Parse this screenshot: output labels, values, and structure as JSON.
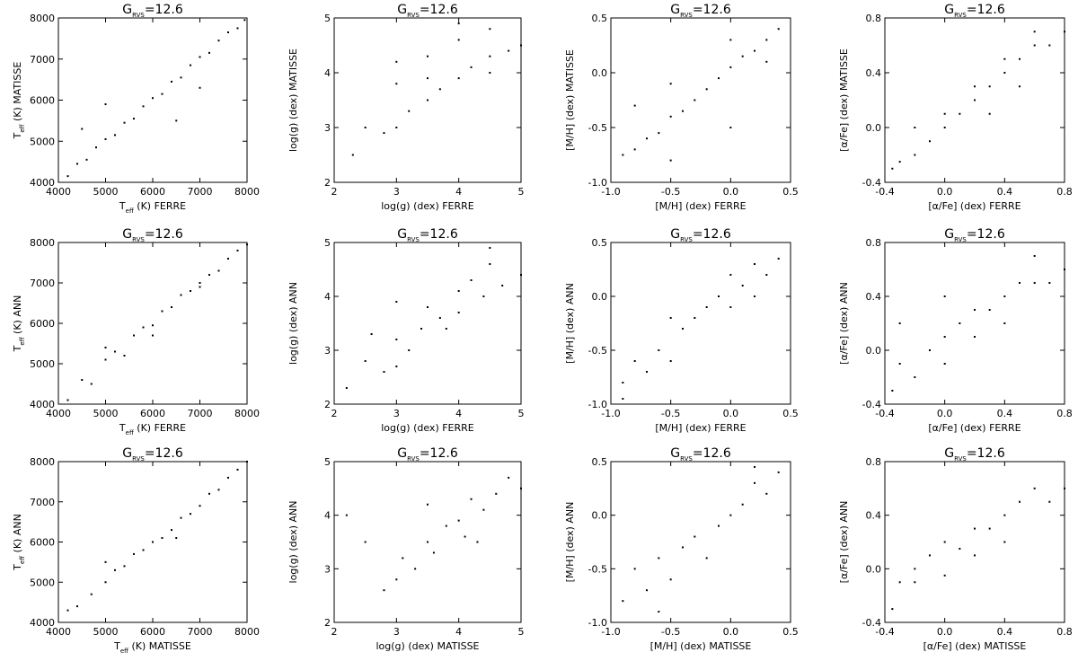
{
  "chart_data": [
    {
      "type": "scatter",
      "color": "#000000",
      "title": [
        {
          "text": "G"
        },
        {
          "text": "RVS",
          "subscript": true
        },
        {
          "text": "=12.6"
        }
      ],
      "xlabel": [
        {
          "text": "T"
        },
        {
          "text": "eff",
          "subscript": true
        },
        {
          "text": " (K) FERRE"
        }
      ],
      "ylabel": [
        {
          "text": "T"
        },
        {
          "text": "eff",
          "subscript": true
        },
        {
          "text": " (K) MATISSE"
        }
      ],
      "xlim": [
        4000,
        8000
      ],
      "ylim": [
        4000,
        8000
      ],
      "xticks": [
        4000,
        5000,
        6000,
        7000,
        8000
      ],
      "yticks": [
        4000,
        5000,
        6000,
        7000,
        8000
      ],
      "x": [
        4200,
        4400,
        4600,
        4800,
        5000,
        5200,
        5400,
        5600,
        5800,
        6000,
        6200,
        6400,
        6600,
        6800,
        7000,
        7200,
        7400,
        7600,
        7800,
        7950,
        5000,
        6500,
        7000,
        4500
      ],
      "y": [
        4150,
        4450,
        4550,
        4850,
        5050,
        5150,
        5450,
        5550,
        5850,
        6050,
        6150,
        6450,
        6550,
        6850,
        7050,
        7150,
        7450,
        7650,
        7750,
        7950,
        5900,
        5500,
        6300,
        5300
      ]
    },
    {
      "type": "scatter",
      "color": "#000000",
      "title": [
        {
          "text": "G"
        },
        {
          "text": "RVS",
          "subscript": true
        },
        {
          "text": "=12.6"
        }
      ],
      "xlabel": [
        {
          "text": "log(g) (dex) FERRE"
        }
      ],
      "ylabel": [
        {
          "text": "log(g) (dex) MATISSE"
        }
      ],
      "xlim": [
        2,
        5
      ],
      "ylim": [
        2,
        5
      ],
      "xticks": [
        2,
        3,
        4,
        5
      ],
      "yticks": [
        2,
        3,
        4,
        5
      ],
      "x": [
        2.5,
        2.8,
        3.0,
        3.0,
        3.2,
        3.5,
        3.5,
        3.7,
        4.0,
        4.0,
        4.2,
        4.5,
        4.5,
        4.8,
        5.0,
        3.0,
        4.0,
        2.3,
        3.5,
        4.5
      ],
      "y": [
        3.0,
        2.9,
        3.0,
        3.8,
        3.3,
        3.5,
        4.3,
        3.7,
        3.9,
        4.6,
        4.1,
        4.3,
        4.8,
        4.4,
        4.5,
        4.2,
        4.9,
        2.5,
        3.9,
        4.0
      ]
    },
    {
      "type": "scatter",
      "color": "#000000",
      "title": [
        {
          "text": "G"
        },
        {
          "text": "RVS",
          "subscript": true
        },
        {
          "text": "=12.6"
        }
      ],
      "xlabel": [
        {
          "text": "[M/H] (dex) FERRE"
        }
      ],
      "ylabel": [
        {
          "text": "[M/H] (dex) MATISSE"
        }
      ],
      "xlim": [
        -1.0,
        0.5
      ],
      "ylim": [
        -1.0,
        0.5
      ],
      "xticks": [
        {
          "value": -1,
          "label": "-1.0"
        },
        -0.5,
        {
          "value": 0,
          "label": "0.0"
        },
        0.5
      ],
      "yticks": [
        {
          "value": -1,
          "label": "-1.0"
        },
        -0.5,
        {
          "value": 0,
          "label": "0.0"
        },
        0.5
      ],
      "x": [
        -0.9,
        -0.8,
        -0.7,
        -0.6,
        -0.5,
        -0.5,
        -0.4,
        -0.3,
        -0.2,
        -0.1,
        0.0,
        0.0,
        0.1,
        0.2,
        0.3,
        0.4,
        -0.5,
        0.0,
        -0.8,
        0.3
      ],
      "y": [
        -0.75,
        -0.7,
        -0.6,
        -0.55,
        -0.4,
        -0.1,
        -0.35,
        -0.25,
        -0.15,
        -0.05,
        0.05,
        0.3,
        0.15,
        0.2,
        0.3,
        0.4,
        -0.8,
        -0.5,
        -0.3,
        0.1
      ]
    },
    {
      "type": "scatter",
      "color": "#000000",
      "title": [
        {
          "text": "G"
        },
        {
          "text": "RVS",
          "subscript": true
        },
        {
          "text": "=12.6"
        }
      ],
      "xlabel": [
        {
          "text": "[α/Fe] (dex) FERRE"
        }
      ],
      "ylabel": [
        {
          "text": "[α/Fe] (dex) MATISSE"
        }
      ],
      "xlim": [
        -0.4,
        0.8
      ],
      "ylim": [
        -0.4,
        0.8
      ],
      "xticks": [
        -0.4,
        {
          "value": 0,
          "label": "0.0"
        },
        0.4,
        0.8
      ],
      "yticks": [
        -0.4,
        {
          "value": 0,
          "label": "0.0"
        },
        0.4,
        0.8
      ],
      "x": [
        -0.35,
        -0.3,
        -0.2,
        -0.1,
        0.0,
        0.0,
        0.1,
        0.2,
        0.2,
        0.3,
        0.4,
        0.4,
        0.5,
        0.6,
        0.6,
        0.7,
        0.8,
        -0.2,
        0.3,
        0.5
      ],
      "y": [
        -0.3,
        -0.25,
        -0.2,
        -0.1,
        0.0,
        0.1,
        0.1,
        0.2,
        0.3,
        0.3,
        0.4,
        0.5,
        0.5,
        0.6,
        0.7,
        0.6,
        0.7,
        0.0,
        0.1,
        0.3
      ]
    },
    {
      "type": "scatter",
      "color": "#000000",
      "title": [
        {
          "text": "G"
        },
        {
          "text": "RVS",
          "subscript": true
        },
        {
          "text": "=12.6"
        }
      ],
      "xlabel": [
        {
          "text": "T"
        },
        {
          "text": "eff",
          "subscript": true
        },
        {
          "text": " (K) FERRE"
        }
      ],
      "ylabel": [
        {
          "text": "T"
        },
        {
          "text": "eff",
          "subscript": true
        },
        {
          "text": " (K) ANN"
        }
      ],
      "xlim": [
        4000,
        8000
      ],
      "ylim": [
        4000,
        8000
      ],
      "xticks": [
        4000,
        5000,
        6000,
        7000,
        8000
      ],
      "yticks": [
        4000,
        5000,
        6000,
        7000,
        8000
      ],
      "x": [
        4200,
        4500,
        4700,
        5000,
        5200,
        5400,
        5600,
        5800,
        6000,
        6200,
        6400,
        6600,
        6800,
        7000,
        7200,
        7400,
        7600,
        7800,
        8000,
        5000,
        6000,
        7000
      ],
      "y": [
        4100,
        4600,
        4500,
        5100,
        5300,
        5200,
        5700,
        5900,
        5950,
        6300,
        6400,
        6700,
        6800,
        7000,
        7200,
        7300,
        7600,
        7800,
        7950,
        5400,
        5700,
        6900
      ]
    },
    {
      "type": "scatter",
      "color": "#000000",
      "title": [
        {
          "text": "G"
        },
        {
          "text": "RVS",
          "subscript": true
        },
        {
          "text": "=12.6"
        }
      ],
      "xlabel": [
        {
          "text": "log(g) (dex) FERRE"
        }
      ],
      "ylabel": [
        {
          "text": "log(g) (dex) ANN"
        }
      ],
      "xlim": [
        2,
        5
      ],
      "ylim": [
        2,
        5
      ],
      "xticks": [
        2,
        3,
        4,
        5
      ],
      "yticks": [
        2,
        3,
        4,
        5
      ],
      "x": [
        2.2,
        2.5,
        2.8,
        3.0,
        3.0,
        3.2,
        3.4,
        3.5,
        3.7,
        4.0,
        4.0,
        4.2,
        4.4,
        4.5,
        4.7,
        5.0,
        3.0,
        4.5,
        2.6,
        3.8
      ],
      "y": [
        2.3,
        2.8,
        2.6,
        3.2,
        2.7,
        3.0,
        3.4,
        3.8,
        3.6,
        4.1,
        3.7,
        4.3,
        4.0,
        4.6,
        4.2,
        4.4,
        3.9,
        4.9,
        3.3,
        3.4
      ]
    },
    {
      "type": "scatter",
      "color": "#000000",
      "title": [
        {
          "text": "G"
        },
        {
          "text": "RVS",
          "subscript": true
        },
        {
          "text": "=12.6"
        }
      ],
      "xlabel": [
        {
          "text": "[M/H] (dex) FERRE"
        }
      ],
      "ylabel": [
        {
          "text": "[M/H] (dex) ANN"
        }
      ],
      "xlim": [
        -1.0,
        0.5
      ],
      "ylim": [
        -1.0,
        0.5
      ],
      "xticks": [
        {
          "value": -1,
          "label": "-1.0"
        },
        -0.5,
        {
          "value": 0,
          "label": "0.0"
        },
        0.5
      ],
      "yticks": [
        {
          "value": -1,
          "label": "-1.0"
        },
        -0.5,
        {
          "value": 0,
          "label": "0.0"
        },
        0.5
      ],
      "x": [
        -0.9,
        -0.8,
        -0.7,
        -0.6,
        -0.5,
        -0.5,
        -0.4,
        -0.3,
        -0.2,
        -0.1,
        0.0,
        0.0,
        0.1,
        0.2,
        0.3,
        0.4,
        -0.9,
        0.2
      ],
      "y": [
        -0.8,
        -0.6,
        -0.7,
        -0.5,
        -0.6,
        -0.2,
        -0.3,
        -0.2,
        -0.1,
        0.0,
        -0.1,
        0.2,
        0.1,
        0.3,
        0.2,
        0.35,
        -0.95,
        0.0
      ]
    },
    {
      "type": "scatter",
      "color": "#000000",
      "title": [
        {
          "text": "G"
        },
        {
          "text": "RVS",
          "subscript": true
        },
        {
          "text": "=12.6"
        }
      ],
      "xlabel": [
        {
          "text": "[α/Fe] (dex) FERRE"
        }
      ],
      "ylabel": [
        {
          "text": "[α/Fe] (dex) ANN"
        }
      ],
      "xlim": [
        -0.4,
        0.8
      ],
      "ylim": [
        -0.4,
        0.8
      ],
      "xticks": [
        -0.4,
        {
          "value": 0,
          "label": "0.0"
        },
        0.4,
        0.8
      ],
      "yticks": [
        -0.4,
        {
          "value": 0,
          "label": "0.0"
        },
        0.4,
        0.8
      ],
      "x": [
        -0.35,
        -0.3,
        -0.2,
        -0.1,
        0.0,
        0.0,
        0.1,
        0.2,
        0.2,
        0.3,
        0.4,
        0.4,
        0.5,
        0.6,
        0.6,
        0.7,
        0.8,
        -0.3,
        0.0
      ],
      "y": [
        -0.3,
        -0.1,
        -0.2,
        0.0,
        0.1,
        -0.1,
        0.2,
        0.1,
        0.3,
        0.3,
        0.4,
        0.2,
        0.5,
        0.5,
        0.7,
        0.5,
        0.6,
        0.2,
        0.4
      ]
    },
    {
      "type": "scatter",
      "color": "#000000",
      "title": [
        {
          "text": "G"
        },
        {
          "text": "RVS",
          "subscript": true
        },
        {
          "text": "=12.6"
        }
      ],
      "xlabel": [
        {
          "text": "T"
        },
        {
          "text": "eff",
          "subscript": true
        },
        {
          "text": " (K) MATISSE"
        }
      ],
      "ylabel": [
        {
          "text": "T"
        },
        {
          "text": "eff",
          "subscript": true
        },
        {
          "text": " (K) ANN"
        }
      ],
      "xlim": [
        4000,
        8000
      ],
      "ylim": [
        4000,
        8000
      ],
      "xticks": [
        4000,
        5000,
        6000,
        7000,
        8000
      ],
      "yticks": [
        4000,
        5000,
        6000,
        7000,
        8000
      ],
      "x": [
        4200,
        4400,
        4700,
        5000,
        5200,
        5400,
        5600,
        5800,
        6000,
        6200,
        6400,
        6600,
        6800,
        7000,
        7200,
        7400,
        7600,
        7800,
        8000,
        5000,
        6500
      ],
      "y": [
        4300,
        4400,
        4700,
        5000,
        5300,
        5400,
        5700,
        5800,
        6000,
        6100,
        6300,
        6600,
        6700,
        6900,
        7200,
        7300,
        7600,
        7800,
        8000,
        5500,
        6100
      ]
    },
    {
      "type": "scatter",
      "color": "#000000",
      "title": [
        {
          "text": "G"
        },
        {
          "text": "RVS",
          "subscript": true
        },
        {
          "text": "=12.6"
        }
      ],
      "xlabel": [
        {
          "text": "log(g) (dex) MATISSE"
        }
      ],
      "ylabel": [
        {
          "text": "log(g) (dex) ANN"
        }
      ],
      "xlim": [
        2,
        5
      ],
      "ylim": [
        2,
        5
      ],
      "xticks": [
        2,
        3,
        4,
        5
      ],
      "yticks": [
        2,
        3,
        4,
        5
      ],
      "x": [
        2.2,
        2.8,
        3.0,
        3.1,
        3.3,
        3.5,
        3.6,
        3.8,
        4.0,
        4.1,
        4.2,
        4.4,
        4.6,
        4.8,
        5.0,
        3.5,
        4.3,
        2.5
      ],
      "y": [
        4.0,
        2.6,
        2.8,
        3.2,
        3.0,
        3.5,
        3.3,
        3.8,
        3.9,
        3.6,
        4.3,
        4.1,
        4.4,
        4.7,
        4.5,
        4.2,
        3.5,
        3.5
      ]
    },
    {
      "type": "scatter",
      "color": "#000000",
      "title": [
        {
          "text": "G"
        },
        {
          "text": "RVS",
          "subscript": true
        },
        {
          "text": "=12.6"
        }
      ],
      "xlabel": [
        {
          "text": "[M/H] (dex) MATISSE"
        }
      ],
      "ylabel": [
        {
          "text": "[M/H] (dex) ANN"
        }
      ],
      "xlim": [
        -1.0,
        0.5
      ],
      "ylim": [
        -1.0,
        0.5
      ],
      "xticks": [
        {
          "value": -1,
          "label": "-1.0"
        },
        -0.5,
        {
          "value": 0,
          "label": "0.0"
        },
        0.5
      ],
      "yticks": [
        {
          "value": -1,
          "label": "-1.0"
        },
        -0.5,
        {
          "value": 0,
          "label": "0.0"
        },
        0.5
      ],
      "x": [
        -0.9,
        -0.8,
        -0.7,
        -0.6,
        -0.5,
        -0.4,
        -0.3,
        -0.2,
        -0.1,
        0.0,
        0.1,
        0.2,
        0.3,
        0.4,
        -0.6,
        0.2
      ],
      "y": [
        -0.8,
        -0.5,
        -0.7,
        -0.4,
        -0.6,
        -0.3,
        -0.2,
        -0.4,
        -0.1,
        0.0,
        0.1,
        0.3,
        0.2,
        0.4,
        -0.9,
        0.45
      ]
    },
    {
      "type": "scatter",
      "color": "#000000",
      "title": [
        {
          "text": "G"
        },
        {
          "text": "RVS",
          "subscript": true
        },
        {
          "text": "=12.6"
        }
      ],
      "xlabel": [
        {
          "text": "[α/Fe] (dex) MATISSE"
        }
      ],
      "ylabel": [
        {
          "text": "[α/Fe] (dex) ANN"
        }
      ],
      "xlim": [
        -0.4,
        0.8
      ],
      "ylim": [
        -0.4,
        0.8
      ],
      "xticks": [
        -0.4,
        {
          "value": 0,
          "label": "0.0"
        },
        0.4,
        0.8
      ],
      "yticks": [
        -0.4,
        {
          "value": 0,
          "label": "0.0"
        },
        0.4,
        0.8
      ],
      "x": [
        -0.35,
        -0.3,
        -0.2,
        -0.2,
        -0.1,
        0.0,
        0.0,
        0.1,
        0.2,
        0.2,
        0.3,
        0.4,
        0.4,
        0.5,
        0.6,
        0.7,
        0.8
      ],
      "y": [
        -0.3,
        -0.1,
        -0.1,
        0.0,
        0.1,
        -0.05,
        0.2,
        0.15,
        0.3,
        0.1,
        0.3,
        0.4,
        0.2,
        0.5,
        0.6,
        0.5,
        0.6
      ]
    }
  ]
}
